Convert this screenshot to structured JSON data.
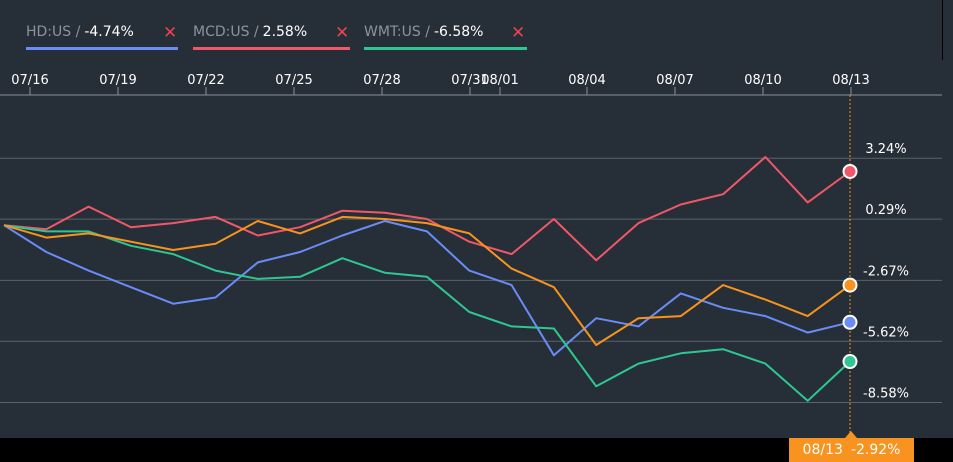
{
  "legend": [
    {
      "symbol": "HD:US /",
      "change": "-4.74%",
      "color": "#6a8cf7"
    },
    {
      "symbol": "MCD:US /",
      "change": "2.58%",
      "color": "#f0586a"
    },
    {
      "symbol": "WMT:US /",
      "change": "-6.58%",
      "color": "#2ec791"
    }
  ],
  "close_glyph": "✕",
  "cursor": {
    "date": "08/13",
    "value": "-2.92%",
    "color": "#f7931e"
  },
  "chart_data": {
    "type": "line",
    "x_tick_labels": [
      "07/16",
      "07/19",
      "07/22",
      "07/25",
      "07/28",
      "07/31",
      "08/01",
      "08/04",
      "08/07",
      "08/10",
      "08/13"
    ],
    "x": [
      "07/16",
      "07/17",
      "07/18",
      "07/19",
      "07/20",
      "07/23",
      "07/24",
      "07/25",
      "07/26",
      "07/27",
      "07/30",
      "07/31",
      "08/01",
      "08/02",
      "08/03",
      "08/06",
      "08/07",
      "08/08",
      "08/09",
      "08/10",
      "08/13"
    ],
    "y_tick_labels": [
      "3.24%",
      "0.29%",
      "-2.67%",
      "-5.62%",
      "-8.58%"
    ],
    "ylim": [
      -10.3,
      6.3
    ],
    "grid": true,
    "y_axis_side": "right",
    "series": [
      {
        "name": "HD:US",
        "color": "#6a8cf7",
        "values": [
          0,
          -1.3,
          -2.2,
          -3.0,
          -3.8,
          -3.5,
          -1.8,
          -1.3,
          -0.5,
          0.2,
          -0.3,
          -2.2,
          -2.9,
          -6.3,
          -4.5,
          -4.9,
          -3.3,
          -4.0,
          -4.4,
          -5.2,
          -4.7
        ]
      },
      {
        "name": "MCD:US",
        "color": "#f0586a",
        "values": [
          0,
          -0.2,
          0.9,
          -0.1,
          0.1,
          0.4,
          -0.5,
          -0.1,
          0.7,
          0.6,
          0.3,
          -0.8,
          -1.4,
          0.3,
          -1.7,
          0.1,
          1.0,
          1.5,
          3.3,
          1.1,
          2.6
        ]
      },
      {
        "name": "WMT:US",
        "color": "#2ec791",
        "values": [
          0,
          -0.3,
          -0.3,
          -1.0,
          -1.4,
          -2.2,
          -2.6,
          -2.5,
          -1.6,
          -2.3,
          -2.5,
          -4.2,
          -4.9,
          -5.0,
          -7.8,
          -6.7,
          -6.2,
          -6.0,
          -6.7,
          -8.5,
          -6.6
        ]
      },
      {
        "name": "",
        "color": "#f7931e",
        "values": [
          0,
          -0.6,
          -0.4,
          -0.8,
          -1.2,
          -0.9,
          0.2,
          -0.4,
          0.4,
          0.3,
          0.1,
          -0.4,
          -2.1,
          -3.0,
          -5.8,
          -4.5,
          -4.4,
          -2.9,
          -3.6,
          -4.4,
          -2.9
        ]
      }
    ]
  }
}
